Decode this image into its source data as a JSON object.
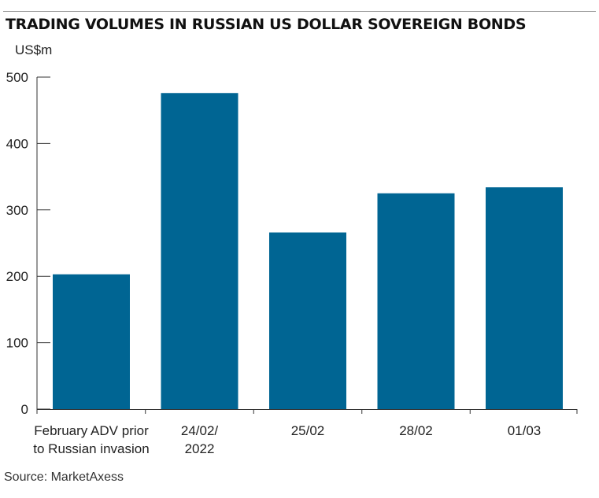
{
  "title": "TRADING VOLUMES IN RUSSIAN US DOLLAR SOVEREIGN BONDS",
  "source": "Source: MarketAxess",
  "colors": {
    "bar": "#006593",
    "axis": "#333333",
    "rule": "#9a9a9a"
  },
  "chart_data": {
    "type": "bar",
    "title": "TRADING VOLUMES IN RUSSIAN US DOLLAR SOVEREIGN BONDS",
    "ylabel": "US$m",
    "xlabel": "",
    "ylim": [
      0,
      500
    ],
    "yticks": [
      0,
      100,
      200,
      300,
      400,
      500
    ],
    "grid": false,
    "categories": [
      [
        "February ADV prior",
        "to Russian invasion"
      ],
      [
        "24/02/",
        "2022"
      ],
      [
        "25/02"
      ],
      [
        "28/02"
      ],
      [
        "01/03"
      ]
    ],
    "values": [
      203,
      476,
      266,
      325,
      334
    ]
  }
}
